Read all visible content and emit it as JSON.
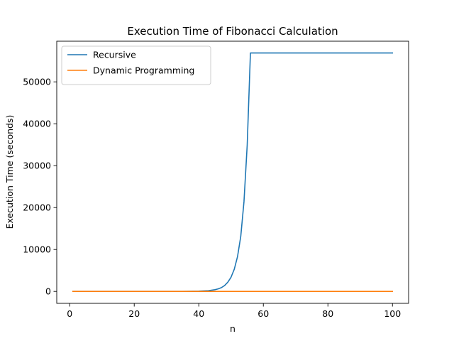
{
  "chart_data": {
    "type": "line",
    "title": "Execution Time of Fibonacci Calculation",
    "xlabel": "n",
    "ylabel": "Execution Time (seconds)",
    "xlim": [
      -4,
      105
    ],
    "ylim": [
      -2850,
      59700
    ],
    "xticks": [
      0,
      20,
      40,
      60,
      80,
      100
    ],
    "yticks": [
      0,
      10000,
      20000,
      30000,
      40000,
      50000
    ],
    "legend_position": "top-left",
    "grid": false,
    "series": [
      {
        "name": "Recursive",
        "color": "#1f77b4",
        "x": [
          1,
          30,
          35,
          40,
          43,
          45,
          46,
          47,
          48,
          49,
          50,
          51,
          52,
          53,
          54,
          55,
          56,
          57,
          100
        ],
        "y": [
          0,
          0,
          6,
          60,
          180,
          400,
          600,
          900,
          1400,
          2200,
          3400,
          5300,
          8300,
          13100,
          21400,
          34900,
          56900,
          56900,
          56900
        ]
      },
      {
        "name": "Dynamic Programming",
        "color": "#ff7f0e",
        "x": [
          1,
          100
        ],
        "y": [
          0,
          0
        ]
      }
    ]
  }
}
